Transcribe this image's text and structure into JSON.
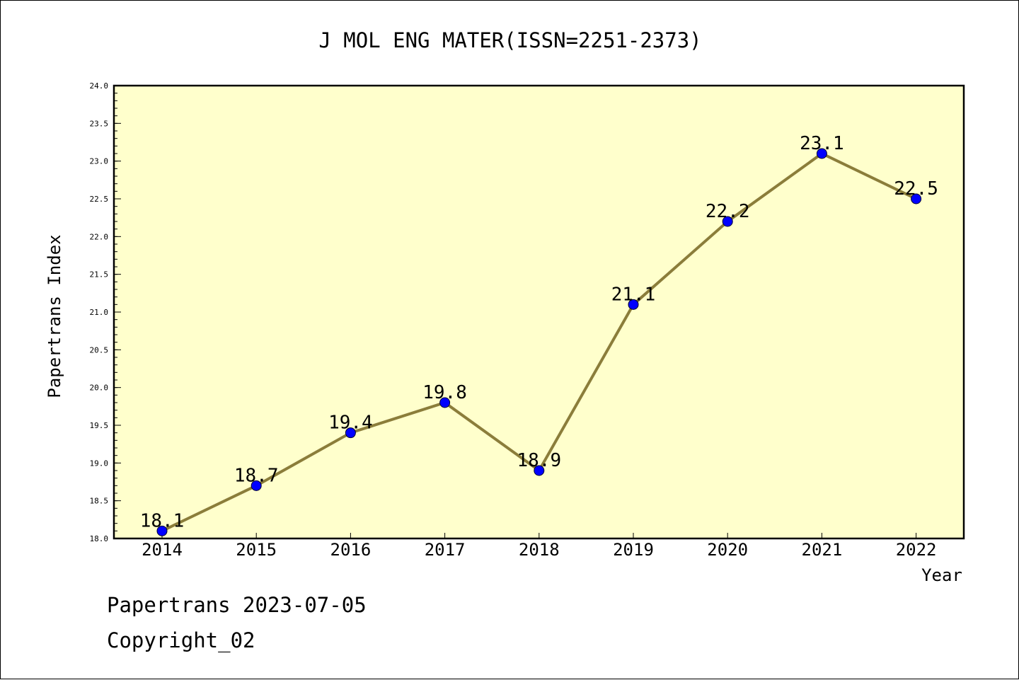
{
  "chart_data": {
    "type": "line",
    "title": "J MOL ENG MATER(ISSN=2251-2373)",
    "xlabel": "Year",
    "ylabel": "Papertrans Index",
    "categories": [
      "2014",
      "2015",
      "2016",
      "2017",
      "2018",
      "2019",
      "2020",
      "2021",
      "2022"
    ],
    "series": [
      {
        "values": [
          18.1,
          18.7,
          19.4,
          19.8,
          18.9,
          21.1,
          22.2,
          23.1,
          22.5
        ],
        "data_labels": [
          "18.1",
          "18.7",
          "19.4",
          "19.8",
          "18.9",
          "21.1",
          "22.2",
          "23.1",
          "22.5"
        ]
      }
    ],
    "ylim": [
      18.0,
      24.0
    ],
    "yticks": [
      "18.0",
      "18.5",
      "19.0",
      "19.5",
      "20.0",
      "20.5",
      "21.0",
      "21.5",
      "22.0",
      "22.5",
      "23.0",
      "23.5",
      "24.0"
    ],
    "grid": false,
    "legend": "none",
    "colors": {
      "plot_background": "#ffffcc",
      "line": "#8b7d3a",
      "marker": "#0000ff"
    }
  },
  "footer": {
    "line1": "Papertrans 2023-07-05",
    "line2": "Copyright_02"
  }
}
